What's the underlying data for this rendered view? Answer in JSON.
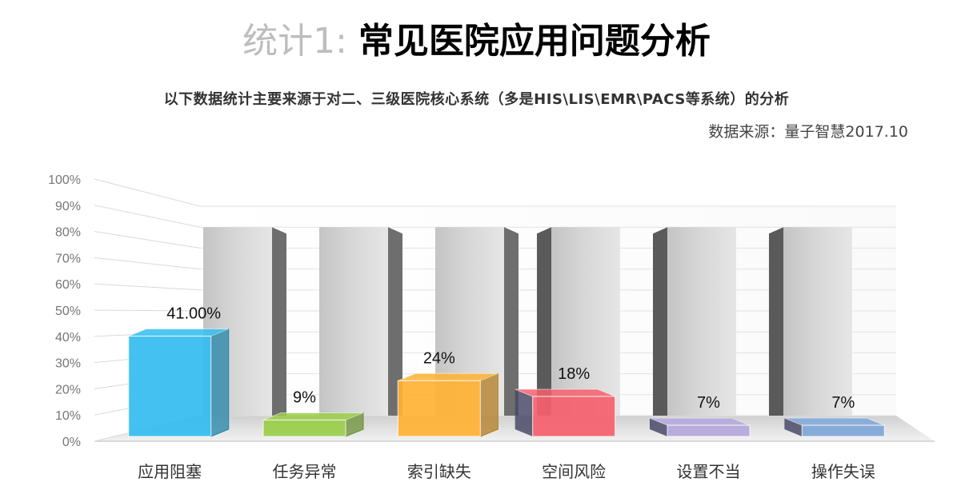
{
  "title": {
    "prefix": "统计1: ",
    "main": "常见医院应用问题分析"
  },
  "subtitle": "以下数据统计主要来源于对二、三级医院核心系统（多是HIS\\LIS\\EMR\\PACS等系统）的分析",
  "source": "数据来源：量子智慧2017.10",
  "chart_data": {
    "type": "bar",
    "categories": [
      "应用阻塞",
      "任务异常",
      "索引缺失",
      "空间风险",
      "设置不当",
      "操作失误"
    ],
    "values": [
      41,
      9,
      24,
      18,
      7,
      7
    ],
    "data_labels": [
      "41.00%",
      "9%",
      "24%",
      "18%",
      "7%",
      "7%"
    ],
    "y_ticks": [
      "0%",
      "10%",
      "20%",
      "30%",
      "40%",
      "50%",
      "60%",
      "70%",
      "80%",
      "90%",
      "100%"
    ],
    "ylim": [
      0,
      100
    ],
    "grid": true,
    "colors": [
      "#33bdf0",
      "#9acd4a",
      "#ffb233",
      "#f5606e",
      "#b4a7dc",
      "#7fa6d8"
    ]
  }
}
